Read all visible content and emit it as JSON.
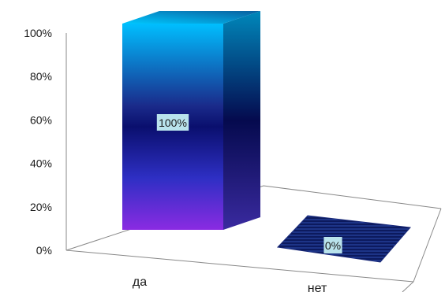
{
  "chart_data": {
    "type": "bar",
    "categories": [
      "да",
      "нет"
    ],
    "values": [
      100,
      0
    ],
    "data_labels": [
      "100%",
      "0%"
    ],
    "y_ticks": [
      "0%",
      "20%",
      "40%",
      "60%",
      "80%",
      "100%"
    ],
    "ylim": [
      0,
      100
    ],
    "unit": "%",
    "grid": false,
    "legend": "none",
    "style": "3d-column",
    "colors": {
      "bar_top": "#00bfff",
      "bar_mid": "#0a0f6e",
      "bar_bottom": "#8a2be2",
      "bar_flat": "#0c1a5e",
      "label_bg": "#b9e3ec",
      "floor_line": "#888888"
    }
  }
}
